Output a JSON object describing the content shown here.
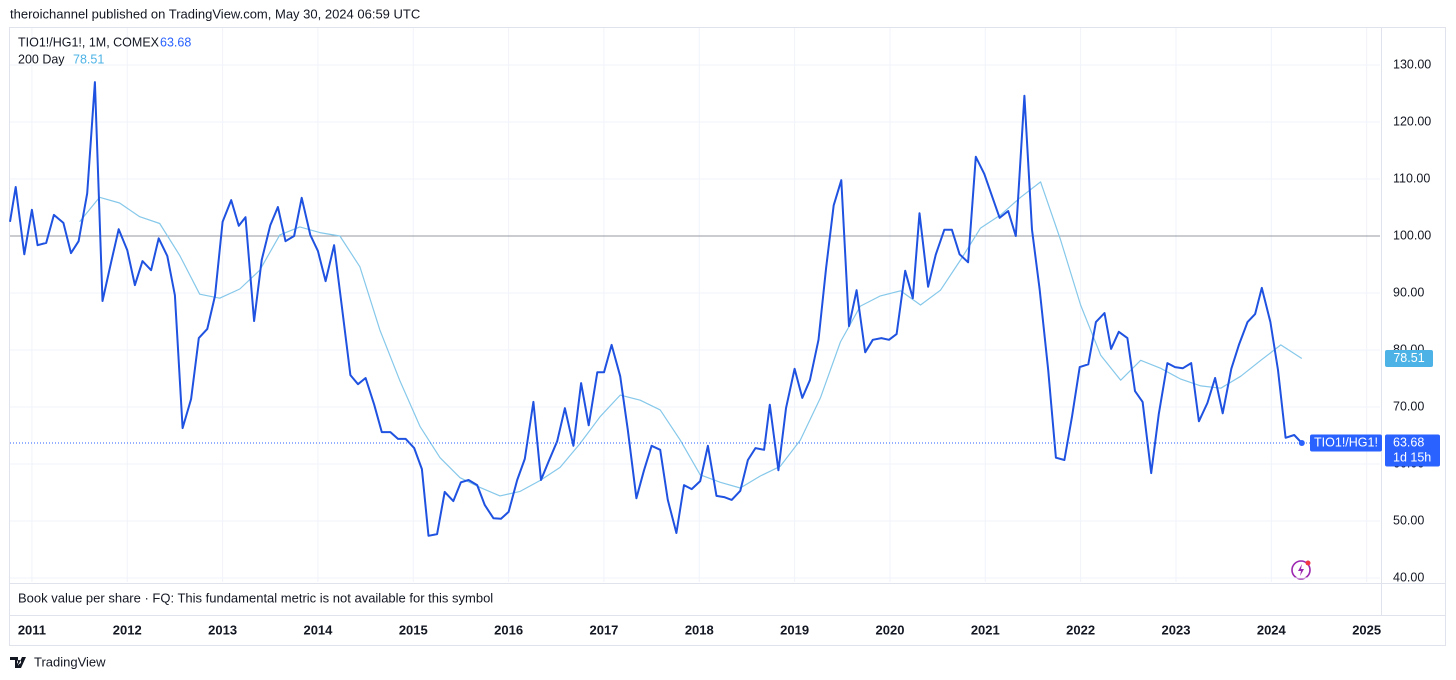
{
  "attribution": "theroichannel published on TradingView.com, May 30, 2024 06:59 UTC",
  "brand": "TradingView",
  "fundamental_note": "Book value per share · FQ: This fundamental metric is not available for this symbol",
  "chart_data": {
    "type": "line",
    "symbol": "TIO1!/HG1!",
    "countdown": "1d 15h",
    "hline": 100,
    "grid": true,
    "xlim": [
      2010.77,
      2025.14
    ],
    "xticks": [
      2011,
      2012,
      2013,
      2014,
      2015,
      2016,
      2017,
      2018,
      2019,
      2020,
      2021,
      2022,
      2023,
      2024,
      2025
    ],
    "ylim": [
      39.3,
      136.5
    ],
    "yticks": [
      {
        "value": 40,
        "label": "40.00"
      },
      {
        "value": 50,
        "label": "50.00"
      },
      {
        "value": 60,
        "label": "60.00"
      },
      {
        "value": 70,
        "label": "70.00"
      },
      {
        "value": 80,
        "label": "80.00"
      },
      {
        "value": 90,
        "label": "90.00"
      },
      {
        "value": 100,
        "label": "100.00"
      },
      {
        "value": 110,
        "label": "110.00"
      },
      {
        "value": 120,
        "label": "120.00"
      },
      {
        "value": 130,
        "label": "130.00"
      }
    ],
    "series": [
      {
        "name": "TIO1!/HG1!, 1M, COMEX",
        "color": "#1f52e0",
        "tag_color": "#2962ff",
        "x": [
          2010.77,
          2010.83,
          2010.92,
          2011.0,
          2011.06,
          2011.15,
          2011.23,
          2011.33,
          2011.41,
          2011.49,
          2011.58,
          2011.66,
          2011.74,
          2011.83,
          2011.91,
          2012.0,
          2012.08,
          2012.16,
          2012.25,
          2012.33,
          2012.42,
          2012.5,
          2012.58,
          2012.67,
          2012.75,
          2012.84,
          2012.92,
          2013.0,
          2013.09,
          2013.17,
          2013.24,
          2013.33,
          2013.41,
          2013.5,
          2013.58,
          2013.66,
          2013.75,
          2013.83,
          2013.92,
          2014.0,
          2014.08,
          2014.17,
          2014.25,
          2014.34,
          2014.42,
          2014.5,
          2014.59,
          2014.67,
          2014.76,
          2014.84,
          2014.92,
          2015.01,
          2015.09,
          2015.16,
          2015.25,
          2015.33,
          2015.42,
          2015.5,
          2015.58,
          2015.67,
          2015.75,
          2015.84,
          2015.92,
          2016.0,
          2016.09,
          2016.17,
          2016.26,
          2016.34,
          2016.42,
          2016.51,
          2016.59,
          2016.68,
          2016.76,
          2016.84,
          2016.93,
          2017.0,
          2017.08,
          2017.17,
          2017.25,
          2017.34,
          2017.42,
          2017.5,
          2017.59,
          2017.67,
          2017.76,
          2017.84,
          2017.92,
          2018.01,
          2018.09,
          2018.18,
          2018.26,
          2018.34,
          2018.43,
          2018.51,
          2018.59,
          2018.68,
          2018.74,
          2018.83,
          2018.91,
          2019.0,
          2019.08,
          2019.16,
          2019.25,
          2019.33,
          2019.41,
          2019.49,
          2019.57,
          2019.65,
          2019.74,
          2019.82,
          2019.91,
          2019.99,
          2020.07,
          2020.16,
          2020.24,
          2020.31,
          2020.4,
          2020.48,
          2020.57,
          2020.65,
          2020.73,
          2020.82,
          2020.9,
          2020.99,
          2021.07,
          2021.15,
          2021.24,
          2021.32,
          2021.41,
          2021.49,
          2021.57,
          2021.66,
          2021.74,
          2021.83,
          2021.91,
          2021.99,
          2022.08,
          2022.16,
          2022.25,
          2022.32,
          2022.4,
          2022.49,
          2022.57,
          2022.65,
          2022.74,
          2022.82,
          2022.91,
          2022.99,
          2023.07,
          2023.16,
          2023.24,
          2023.33,
          2023.41,
          2023.49,
          2023.58,
          2023.66,
          2023.75,
          2023.83,
          2023.9,
          2023.99,
          2024.07,
          2024.15,
          2024.24,
          2024.32
        ],
        "values": [
          102.5,
          108.6,
          96.8,
          104.6,
          98.4,
          98.8,
          103.7,
          102.3,
          97.0,
          99.1,
          107.5,
          127.0,
          88.6,
          95.4,
          101.2,
          97.5,
          91.4,
          95.6,
          94.0,
          99.6,
          96.5,
          89.6,
          66.3,
          71.4,
          82.1,
          83.7,
          89.5,
          102.5,
          106.3,
          101.8,
          103.3,
          85.1,
          95.8,
          101.9,
          105.1,
          99.1,
          100.0,
          106.7,
          100.2,
          97.4,
          92.1,
          98.4,
          87.7,
          75.6,
          74.0,
          75.1,
          70.4,
          65.6,
          65.6,
          64.4,
          64.4,
          62.8,
          59.1,
          47.4,
          47.7,
          55.1,
          53.5,
          56.8,
          57.2,
          56.3,
          52.8,
          50.5,
          50.4,
          51.6,
          57.2,
          60.9,
          70.9,
          57.2,
          60.5,
          64.0,
          69.8,
          63.2,
          74.2,
          66.8,
          76.1,
          76.1,
          80.9,
          75.4,
          66.0,
          54.0,
          58.9,
          63.2,
          62.5,
          53.7,
          47.9,
          56.3,
          55.6,
          57.0,
          63.2,
          54.4,
          54.2,
          53.7,
          55.3,
          60.7,
          62.8,
          62.5,
          70.4,
          58.9,
          69.8,
          76.7,
          71.6,
          74.7,
          81.8,
          94.4,
          105.4,
          109.8,
          84.2,
          90.5,
          79.6,
          81.8,
          82.1,
          81.8,
          82.8,
          93.9,
          89.1,
          104.0,
          91.1,
          96.7,
          101.1,
          101.1,
          96.8,
          95.4,
          113.9,
          110.9,
          107.0,
          103.2,
          104.4,
          100.0,
          124.6,
          101.1,
          90.7,
          76.5,
          61.1,
          60.7,
          68.4,
          77.0,
          77.5,
          84.9,
          86.5,
          80.2,
          83.2,
          82.1,
          72.8,
          70.9,
          58.4,
          68.8,
          77.7,
          77.0,
          76.8,
          77.7,
          67.5,
          70.7,
          75.1,
          68.9,
          76.7,
          80.9,
          84.9,
          86.3,
          90.9,
          84.9,
          76.5,
          64.6,
          65.1,
          63.68
        ]
      },
      {
        "name": "200 Day",
        "color": "#86c8ea",
        "tag_color": "#4db3e6",
        "x": [
          2011.5,
          2011.71,
          2011.92,
          2012.13,
          2012.34,
          2012.55,
          2012.76,
          2012.97,
          2013.18,
          2013.39,
          2013.6,
          2013.81,
          2014.02,
          2014.23,
          2014.44,
          2014.65,
          2014.86,
          2015.07,
          2015.28,
          2015.49,
          2015.7,
          2015.91,
          2016.12,
          2016.33,
          2016.54,
          2016.75,
          2016.96,
          2017.17,
          2017.38,
          2017.59,
          2017.8,
          2018.01,
          2018.22,
          2018.43,
          2018.64,
          2018.85,
          2019.06,
          2019.27,
          2019.48,
          2019.69,
          2019.9,
          2020.11,
          2020.32,
          2020.53,
          2020.74,
          2020.95,
          2021.16,
          2021.37,
          2021.58,
          2021.79,
          2022.0,
          2022.21,
          2022.42,
          2022.63,
          2022.84,
          2023.05,
          2023.26,
          2023.47,
          2023.68,
          2023.89,
          2024.1,
          2024.32
        ],
        "values": [
          102.5,
          106.8,
          105.8,
          103.4,
          102.2,
          96.6,
          89.8,
          89.1,
          90.7,
          94.0,
          100.2,
          101.6,
          100.6,
          100.0,
          94.6,
          83.5,
          74.6,
          66.6,
          61.1,
          57.6,
          55.9,
          54.4,
          55.2,
          57.1,
          59.4,
          63.6,
          68.3,
          72.1,
          71.2,
          69.5,
          64.2,
          58.1,
          56.8,
          55.8,
          57.9,
          59.6,
          64.2,
          71.6,
          81.4,
          87.7,
          89.5,
          90.4,
          87.9,
          90.5,
          95.8,
          101.4,
          103.7,
          106.8,
          109.5,
          99.3,
          87.9,
          79.1,
          74.7,
          78.2,
          76.8,
          74.9,
          73.7,
          73.3,
          75.4,
          78.2,
          80.9,
          78.51
        ]
      }
    ]
  }
}
